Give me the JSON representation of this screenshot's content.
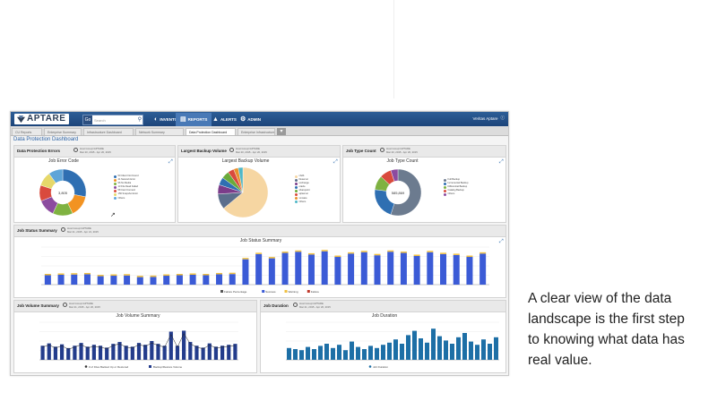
{
  "app": {
    "brand": "APTARE"
  },
  "topbar": {
    "search_go": "Go",
    "search_placeholder": "Search",
    "nav": [
      {
        "label": "INVENTORY",
        "icon": "inventory-icon"
      },
      {
        "label": "REPORTS",
        "icon": "reports-icon"
      },
      {
        "label": "ALERTS",
        "icon": "alerts-icon"
      },
      {
        "label": "ADMIN",
        "icon": "admin-icon"
      }
    ],
    "user": "Veritas Aptare"
  },
  "tabs": [
    {
      "label": "CU Reports"
    },
    {
      "label": "Enterprise Summary"
    },
    {
      "label": "Infrastructure Dashboard"
    },
    {
      "label": "Network Summary"
    },
    {
      "label": "Data Protection Dashboard"
    },
    {
      "label": "Enterprise Infrastructure"
    }
  ],
  "page_title": "Data Protection Dashboard",
  "panels": {
    "errors": {
      "title": "Data Protection Errors",
      "info1": "Host Group=APTARE",
      "info2": "Mar 20, 2015 - Apr 20, 2015",
      "chart_title": "Job Error Code",
      "center": "3,805",
      "legend": [
        "50 Client Not Found",
        "41 Network Error",
        "96 No Media",
        "13 File Read Failed",
        "58 Cant Connect",
        "156 Snapshot Error",
        "Others"
      ]
    },
    "volume": {
      "title": "Largest Backup Volume",
      "info1": "Host Group=APTARE",
      "info2": "Mar 20, 2015 - Apr 20, 2015",
      "chart_title": "Largest Backup Volume",
      "legend": [
        "nbdb",
        "fileserver",
        "exchange",
        "oracle",
        "sharepoint",
        "sqlserver",
        "vmware",
        "Others"
      ]
    },
    "jobtype": {
      "title": "Job Type Count",
      "info1": "Host Group=APTARE",
      "info2": "Mar 20, 2015 - Apr 20, 2015",
      "chart_title": "Job Type Count",
      "center": "585,869",
      "legend": [
        "Full Backup",
        "Incremental Backup",
        "Differential Backup",
        "Catalog Backup",
        "Others"
      ]
    },
    "status": {
      "title": "Job Status Summary",
      "info1": "Host Group=APTARE",
      "info2": "Mar 21, 2015 - Apr 21, 2015",
      "chart_title": "Job Status Summary",
      "legend": [
        "Failure Percentage",
        "Success",
        "Warning",
        "Failure"
      ]
    },
    "jobvolume": {
      "title": "Job Volume Summary",
      "info1": "Host Group=APTARE",
      "info2": "Mar 21, 2015 - Apr 20, 2015",
      "chart_title": "Job Volume Summary",
      "legend": [
        "# of Files Backed Up or Restored",
        "Backup/Restore Volume"
      ]
    },
    "duration": {
      "title": "Job Duration",
      "info1": "Host Group=APTARE",
      "info2": "Mar 21, 2015 - Apr 20, 2015",
      "chart_title": "Job Duration",
      "legend": [
        "Job Duration"
      ]
    }
  },
  "tagline": [
    "A clear view of the data",
    "landscape is the first step",
    "to knowing what data has",
    "real value."
  ],
  "colors": {
    "topbar": "#1c4479",
    "accent": "#3f78b5",
    "bar_blue": "#3b5bd6",
    "bar_navy": "#233c8c",
    "bar_teal": "#1d6fa6",
    "pie_tan": "#f6d6a2"
  },
  "chart_data": [
    {
      "type": "pie",
      "title": "Job Error Code",
      "categories": [
        "50 Client Not Found",
        "41 Network Error",
        "96 No Media",
        "13 File Read Failed",
        "58 Cant Connect",
        "156 Snapshot Error",
        "Others"
      ],
      "values": [
        28,
        15,
        14,
        12,
        11,
        10,
        10
      ],
      "colors": [
        "#2f6fb2",
        "#f29322",
        "#7fb241",
        "#8c4b9f",
        "#d94a3d",
        "#e6d86a",
        "#5ea5d8"
      ]
    },
    {
      "type": "pie",
      "title": "Largest Backup Volume",
      "categories": [
        "nbdb",
        "fileserver",
        "exchange",
        "oracle",
        "sharepoint",
        "sqlserver",
        "vmware",
        "Others"
      ],
      "values": [
        64,
        10,
        6,
        5,
        5,
        4,
        3,
        3
      ],
      "colors": [
        "#f6d6a2",
        "#5b6e8c",
        "#7b3c8a",
        "#2f6fb2",
        "#6aaa3a",
        "#d94a3d",
        "#e8912e",
        "#4fb7c7"
      ]
    },
    {
      "type": "pie",
      "title": "Job Type Count",
      "categories": [
        "Full Backup",
        "Incremental Backup",
        "Differential Backup",
        "Catalog Backup",
        "Others"
      ],
      "values": [
        55,
        22,
        10,
        8,
        5
      ],
      "colors": [
        "#6c7b8f",
        "#2f6fb2",
        "#7fb241",
        "#d94a3d",
        "#8c4b9f"
      ]
    },
    {
      "type": "bar",
      "title": "Job Status Summary",
      "series": [
        {
          "name": "Success",
          "values": [
            40,
            42,
            43,
            44,
            36,
            38,
            39,
            32,
            33,
            38,
            40,
            42,
            40,
            44,
            45,
            108,
            130,
            112,
            135,
            140,
            128,
            142,
            118,
            132,
            138,
            125,
            140,
            135,
            122,
            138,
            130,
            126,
            118,
            132
          ]
        }
      ],
      "ylim": [
        0,
        160
      ]
    },
    {
      "type": "bar",
      "title": "Job Volume Summary",
      "series": [
        {
          "name": "Backup/Restore Volume",
          "values": [
            30,
            35,
            28,
            33,
            25,
            30,
            36,
            28,
            32,
            30,
            26,
            34,
            38,
            30,
            28,
            36,
            32,
            40,
            34,
            30,
            60,
            30,
            62,
            38,
            30,
            26,
            35,
            28,
            30,
            32,
            34
          ]
        }
      ],
      "ylim": [
        0,
        80
      ]
    },
    {
      "type": "bar",
      "title": "Job Duration",
      "series": [
        {
          "name": "Job Duration",
          "values": [
            22,
            20,
            18,
            24,
            20,
            26,
            30,
            22,
            28,
            18,
            34,
            24,
            20,
            26,
            22,
            28,
            32,
            38,
            30,
            46,
            54,
            40,
            32,
            58,
            44,
            36,
            30,
            42,
            50,
            34,
            28,
            38,
            30,
            42
          ]
        }
      ],
      "ylim": [
        0,
        70
      ]
    }
  ]
}
